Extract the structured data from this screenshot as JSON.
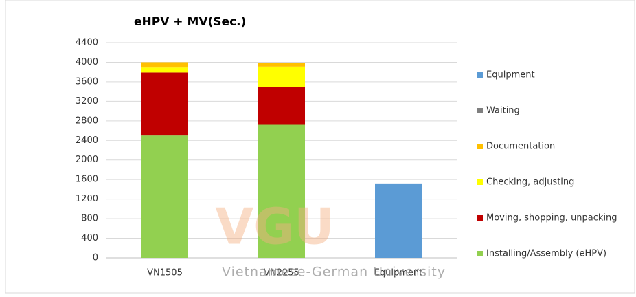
{
  "chart_data": {
    "type": "stacked_bar",
    "title": "eHPV + MV(Sec.)",
    "categories": [
      "VN1505",
      "VN2255",
      "Equipment"
    ],
    "series": [
      {
        "name": "Installing/Assembly (eHPV)",
        "color": "#92d050",
        "values": [
          2500,
          2720,
          0
        ]
      },
      {
        "name": "Moving, shopping, unpacking",
        "color": "#c00000",
        "values": [
          1290,
          770,
          0
        ]
      },
      {
        "name": "Checking, adjusting",
        "color": "#ffff00",
        "values": [
          100,
          420,
          0
        ]
      },
      {
        "name": "Documentation",
        "color": "#ffc000",
        "values": [
          110,
          80,
          0
        ]
      },
      {
        "name": "Waiting",
        "color": "#7f7f7f",
        "values": [
          0,
          0,
          0
        ]
      },
      {
        "name": "Equipment",
        "color": "#5b9bd5",
        "values": [
          0,
          0,
          1520
        ]
      }
    ],
    "ylim": [
      0,
      4400
    ],
    "yticks": [
      0,
      400,
      800,
      1200,
      1600,
      2000,
      2400,
      2800,
      3200,
      3600,
      4000,
      4400
    ],
    "grid": true,
    "legend": "right",
    "watermark": {
      "logo": "VGU",
      "text": "Vietnamese-German University"
    }
  }
}
